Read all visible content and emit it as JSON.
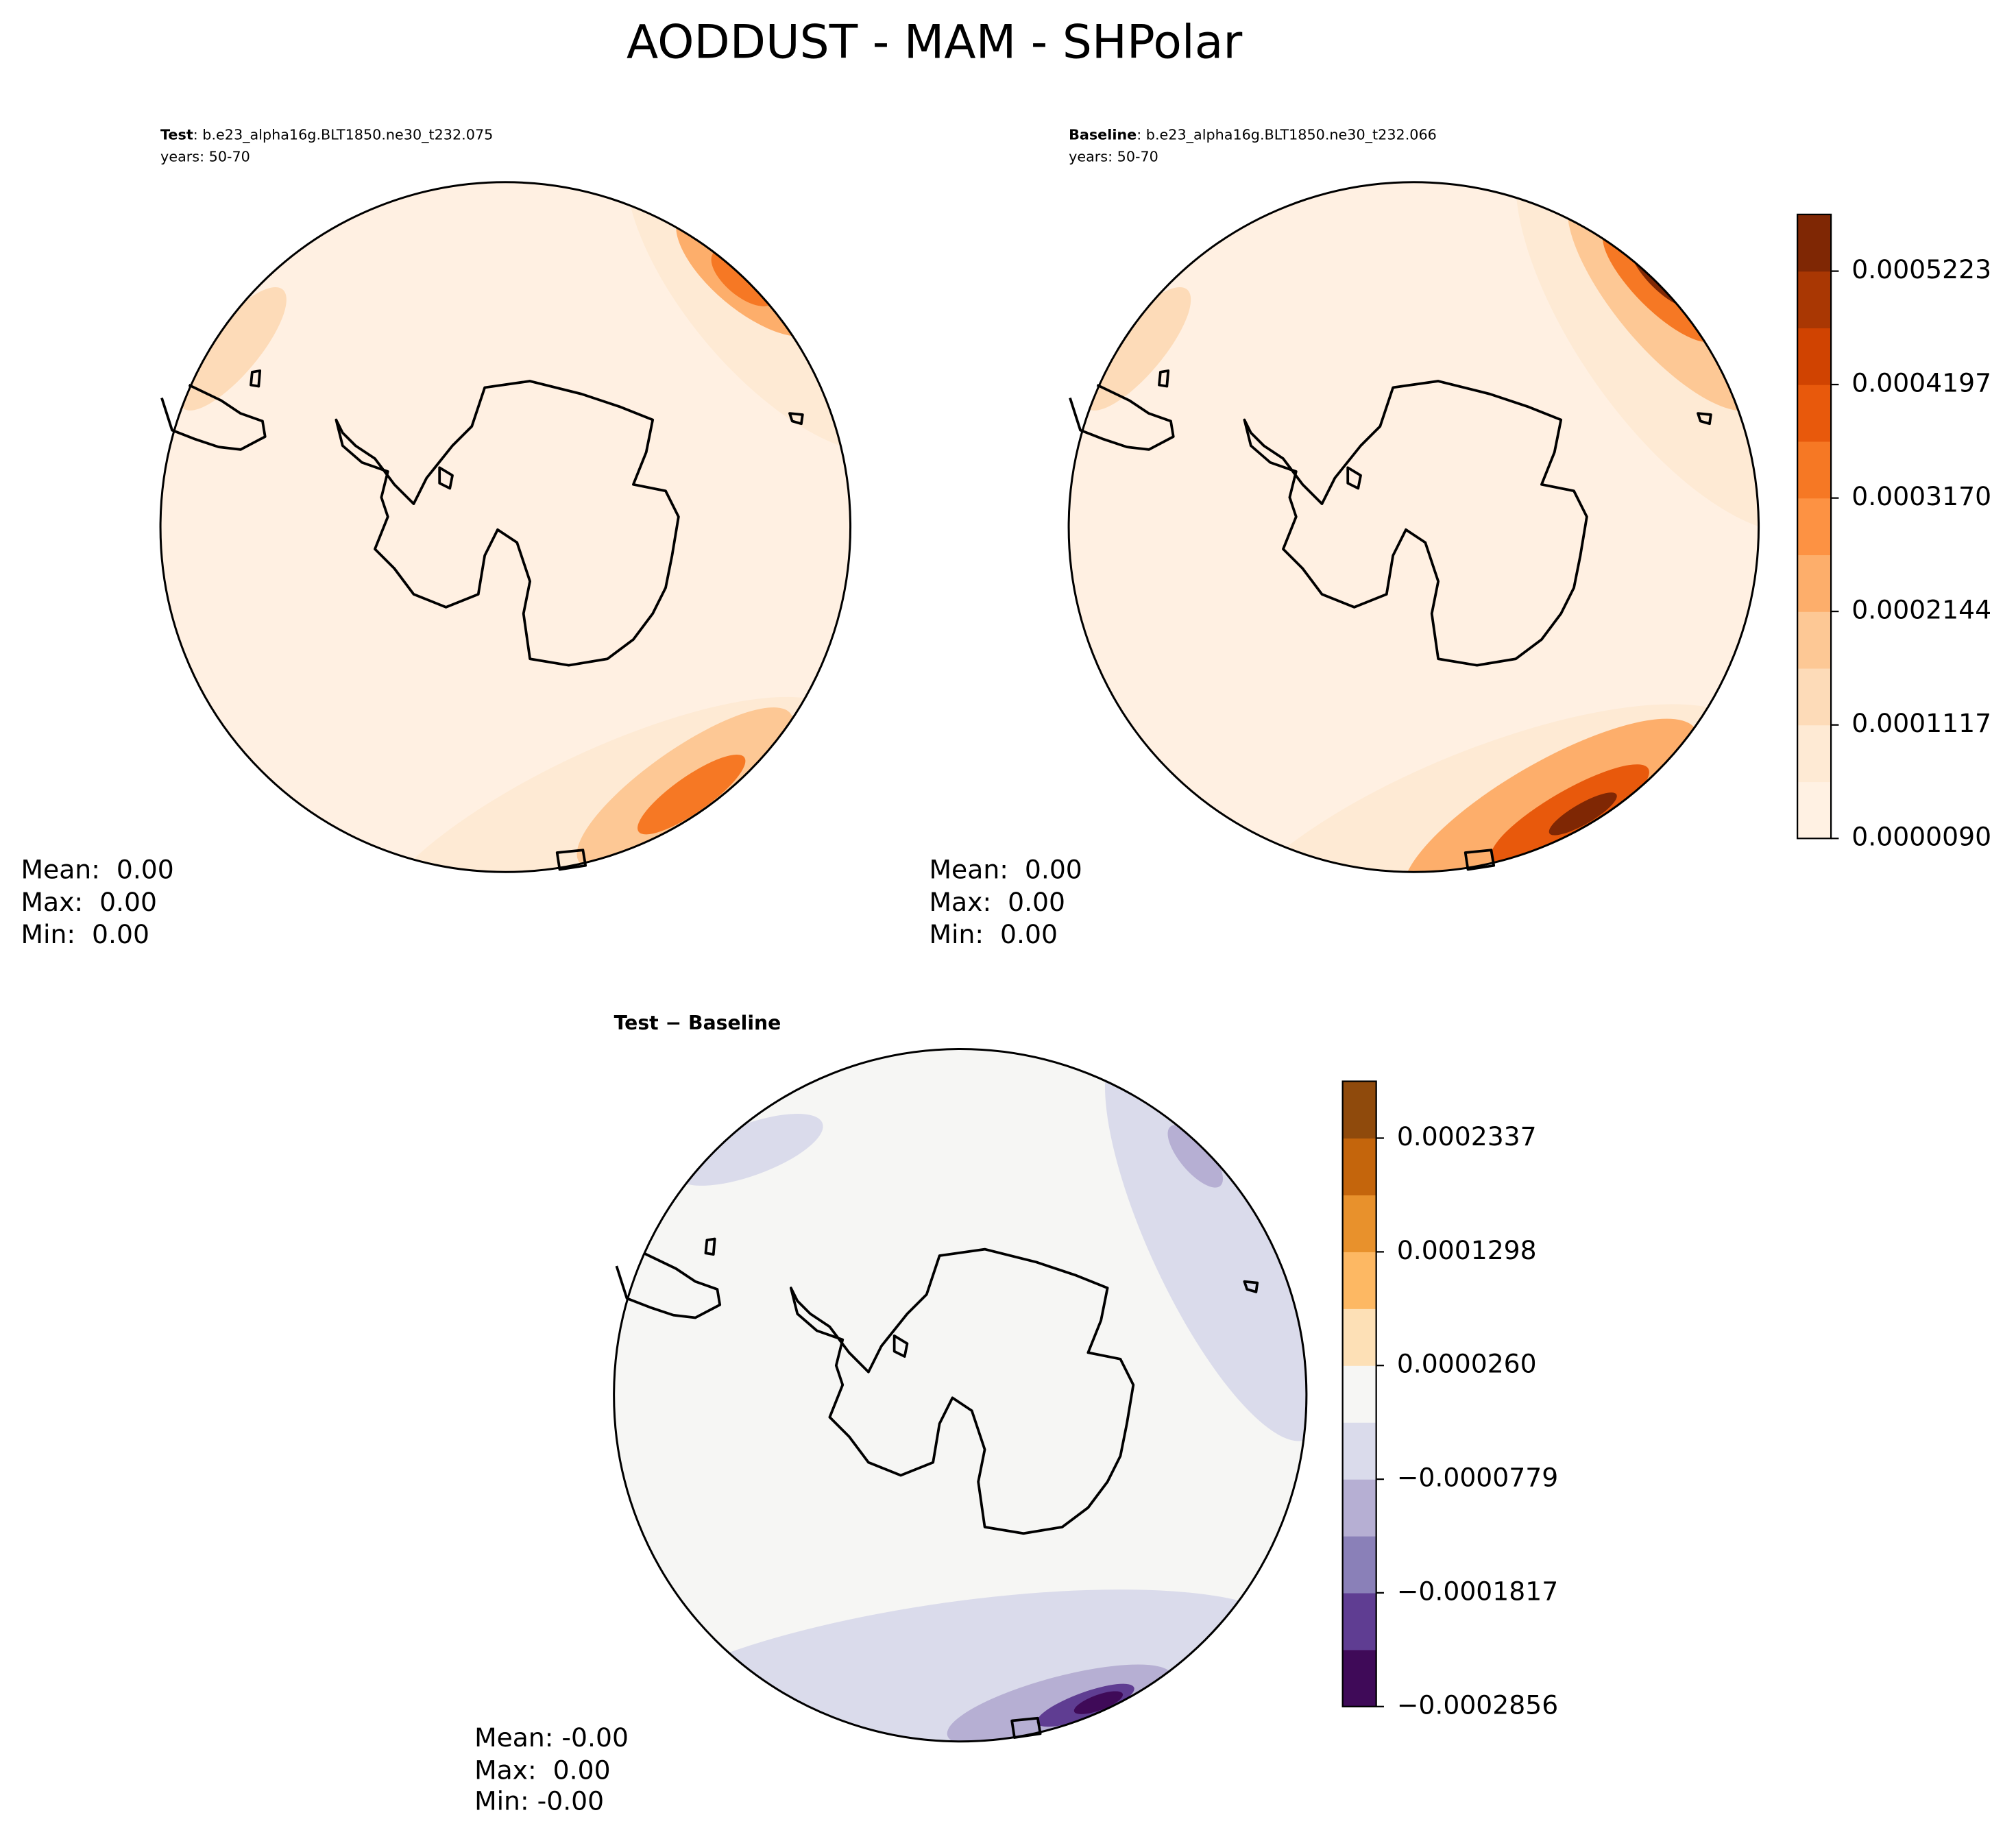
{
  "title": "AODDUST - MAM - SHPolar",
  "panels": [
    {
      "name": "Test",
      "case": ": b.e23_alpha16g.BLT1850.ne30_t232.075",
      "years": "years: 50-70",
      "stats": [
        "Mean:  0.00",
        "Max:  0.00",
        "Min:  0.00"
      ]
    },
    {
      "name": "Baseline",
      "case": ": b.e23_alpha16g.BLT1850.ne30_t232.066",
      "years": "years: 50-70",
      "stats": [
        "Mean:  0.00",
        "Max:  0.00",
        "Min:  0.00"
      ]
    },
    {
      "name": "Test − Baseline",
      "stats": [
        "Mean: -0.00",
        "Max:  0.00",
        "Min: -0.00"
      ]
    }
  ],
  "colorbars": [
    {
      "colors": [
        "#fff1e3",
        "#feead4",
        "#fddbb8",
        "#fdc895",
        "#fdae6b",
        "#fd9243",
        "#f67824",
        "#e8590c",
        "#d04301",
        "#a93703",
        "#7f2704"
      ],
      "lim": [
        9e-06,
        0.0005736
      ],
      "ticks": [
        {
          "value": 9e-06,
          "label": "0.0000090"
        },
        {
          "value": 0.0001117,
          "label": "0.0001117"
        },
        {
          "value": 0.0002144,
          "label": "0.0002144"
        },
        {
          "value": 0.000317,
          "label": "0.0003170"
        },
        {
          "value": 0.0004197,
          "label": "0.0004197"
        },
        {
          "value": 0.0005223,
          "label": "0.0005223"
        }
      ]
    },
    {
      "colors": [
        "#3f0a58",
        "#5f3d92",
        "#8a80b8",
        "#b6afd3",
        "#dadbeb",
        "#f6f6f4",
        "#fde0b6",
        "#fdb863",
        "#e8912c",
        "#c4650c",
        "#8f4a0c"
      ],
      "lim": [
        -0.0002856,
        0.0002856
      ],
      "ticks": [
        {
          "value": -0.0002856,
          "label": "−0.0002856"
        },
        {
          "value": -0.0001817,
          "label": "−0.0001817"
        },
        {
          "value": -7.79e-05,
          "label": "−0.0000779"
        },
        {
          "value": 2.6e-05,
          "label": "0.0000260"
        },
        {
          "value": 0.0001298,
          "label": "0.0001298"
        },
        {
          "value": 0.0002337,
          "label": "0.0002337"
        }
      ]
    }
  ]
}
